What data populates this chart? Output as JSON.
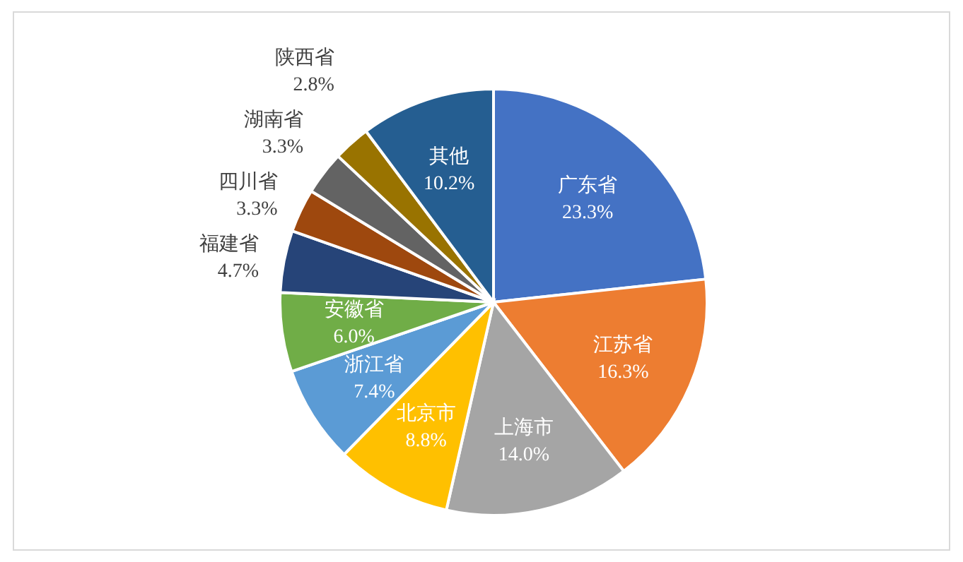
{
  "chart_data": {
    "type": "pie",
    "categories": [
      "广东省",
      "江苏省",
      "上海市",
      "北京市",
      "浙江省",
      "安徽省",
      "福建省",
      "四川省",
      "湖南省",
      "陕西省",
      "其他"
    ],
    "values": [
      23.3,
      16.3,
      14.0,
      8.8,
      7.4,
      6.0,
      4.7,
      3.3,
      3.3,
      2.8,
      10.2
    ],
    "value_labels": [
      "23.3%",
      "16.3%",
      "14.0%",
      "8.8%",
      "7.4%",
      "6.0%",
      "4.7%",
      "3.3%",
      "3.3%",
      "2.8%",
      "10.2%"
    ],
    "colors": [
      "#4472c4",
      "#ed7d31",
      "#a5a5a5",
      "#ffc000",
      "#5b9bd5",
      "#70ad47",
      "#264478",
      "#9e480e",
      "#636363",
      "#997300",
      "#255e91"
    ],
    "legend": false
  }
}
